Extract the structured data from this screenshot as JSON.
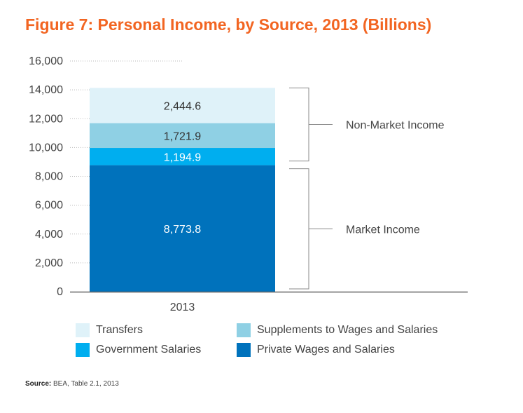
{
  "title": "Figure 7: Personal Income, by Source, 2013 (Billions)",
  "source": {
    "label": "Source:",
    "text": "BEA, Table 2.1, 2013"
  },
  "colors": {
    "title": "#f26522",
    "transfers": "#dff2f9",
    "supplements": "#8fd0e4",
    "government": "#00aeef",
    "private": "#0072bc"
  },
  "chart_data": {
    "type": "bar",
    "stacked": true,
    "categories": [
      "2013"
    ],
    "ylim": [
      0,
      16000
    ],
    "yticks": [
      "0",
      "2,000",
      "4,000",
      "6,000",
      "8,000",
      "10,000",
      "12,000",
      "14,000",
      "16,000"
    ],
    "ytick_values": [
      0,
      2000,
      4000,
      6000,
      8000,
      10000,
      12000,
      14000,
      16000
    ],
    "grid": "dotted",
    "series": [
      {
        "name": "Private Wages and Salaries",
        "values": [
          8773.8
        ],
        "label": "8,773.8",
        "color": "#0072bc",
        "text_color": "#ffffff"
      },
      {
        "name": "Government Salaries",
        "values": [
          1194.9
        ],
        "label": "1,194.9",
        "color": "#00aeef",
        "text_color": "#ffffff"
      },
      {
        "name": "Supplements to Wages and Salaries",
        "values": [
          1721.9
        ],
        "label": "1,721.9",
        "color": "#8fd0e4",
        "text_color": "#333333"
      },
      {
        "name": "Transfers",
        "values": [
          2444.6
        ],
        "label": "2,444.6",
        "color": "#dff2f9",
        "text_color": "#333333"
      }
    ],
    "annotations": [
      {
        "text": "Market Income",
        "range": [
          0,
          8773.8
        ]
      },
      {
        "text": "Non-Market Income",
        "range": [
          8773.8,
          14135.2
        ]
      }
    ],
    "legend": [
      {
        "name": "Transfers",
        "color": "#dff2f9"
      },
      {
        "name": "Supplements to Wages and Salaries",
        "color": "#8fd0e4"
      },
      {
        "name": "Government Salaries",
        "color": "#00aeef"
      },
      {
        "name": "Private Wages and Salaries",
        "color": "#0072bc"
      }
    ],
    "legend_position": "bottom"
  }
}
